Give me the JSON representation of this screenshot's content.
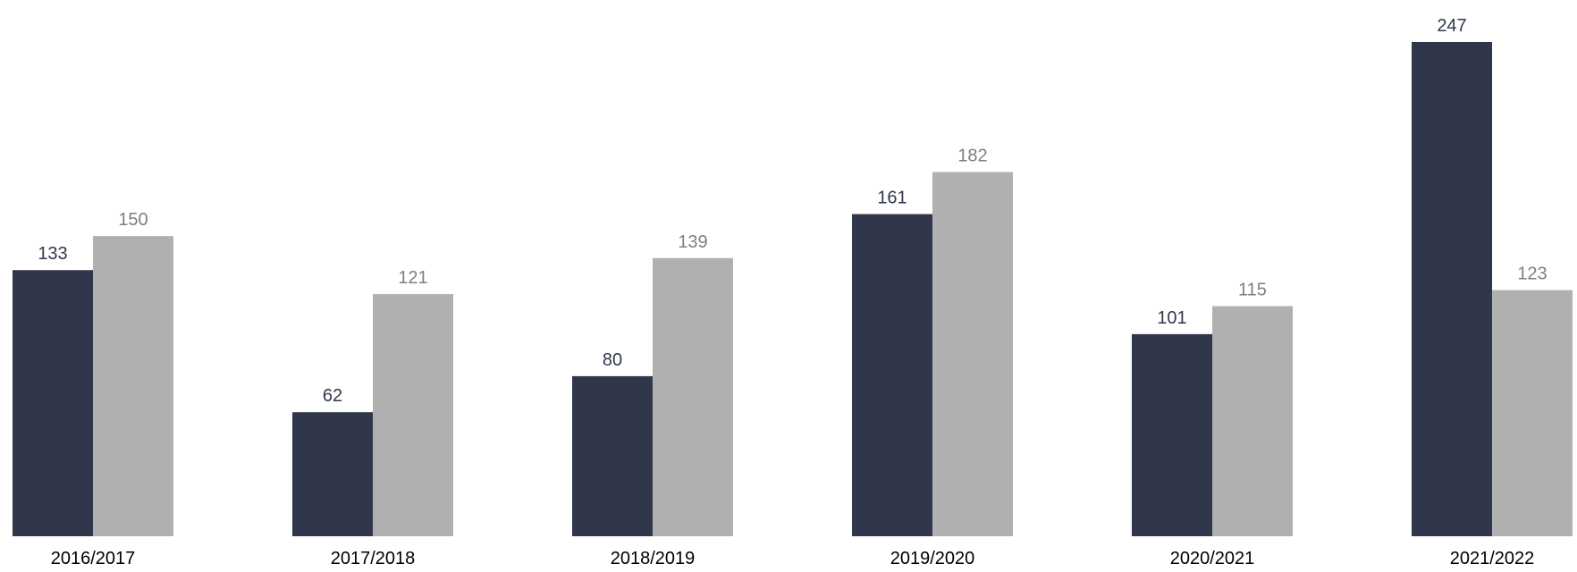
{
  "chart_data": {
    "type": "bar",
    "categories": [
      "2016/2017",
      "2017/2018",
      "2018/2019",
      "2019/2020",
      "2020/2021",
      "2021/2022"
    ],
    "series": [
      {
        "values": [
          133,
          62,
          80,
          161,
          101,
          247
        ],
        "color": "#30374b",
        "label_color": "#30374b"
      },
      {
        "values": [
          150,
          121,
          139,
          182,
          115,
          123
        ],
        "color": "#b0b0b0",
        "label_color": "#7f7f7f"
      }
    ],
    "value_labels": [
      [
        "133",
        "62",
        "80",
        "161",
        "101",
        "247"
      ],
      [
        "150",
        "121",
        "139",
        "182",
        "115",
        "123"
      ]
    ],
    "title": "",
    "xlabel": "",
    "ylabel": "",
    "ylim": [
      0,
      247
    ],
    "grid": false,
    "legend": "none"
  }
}
